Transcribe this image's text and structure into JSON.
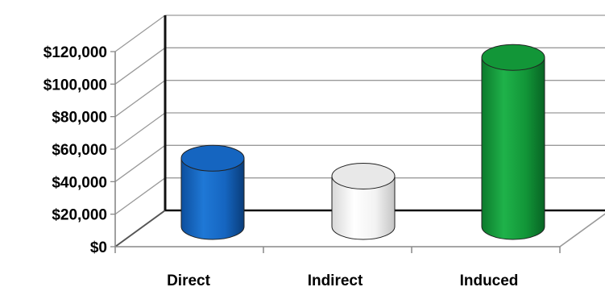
{
  "chart_data": {
    "type": "bar",
    "style": "3d-cylinder",
    "categories": [
      "Direct",
      "Indirect",
      "Induced"
    ],
    "values": [
      42000,
      31000,
      104000
    ],
    "colors": [
      "#1565c0",
      "#e8e8e8",
      "#129638"
    ],
    "ylim": [
      0,
      120000
    ],
    "yticks": [
      0,
      20000,
      40000,
      60000,
      80000,
      100000,
      120000
    ],
    "ytick_labels": [
      "$0",
      "$20,000",
      "$40,000",
      "$60,000",
      "$80,000",
      "$100,000",
      "$120,000"
    ],
    "grid": true,
    "legend": "none"
  }
}
